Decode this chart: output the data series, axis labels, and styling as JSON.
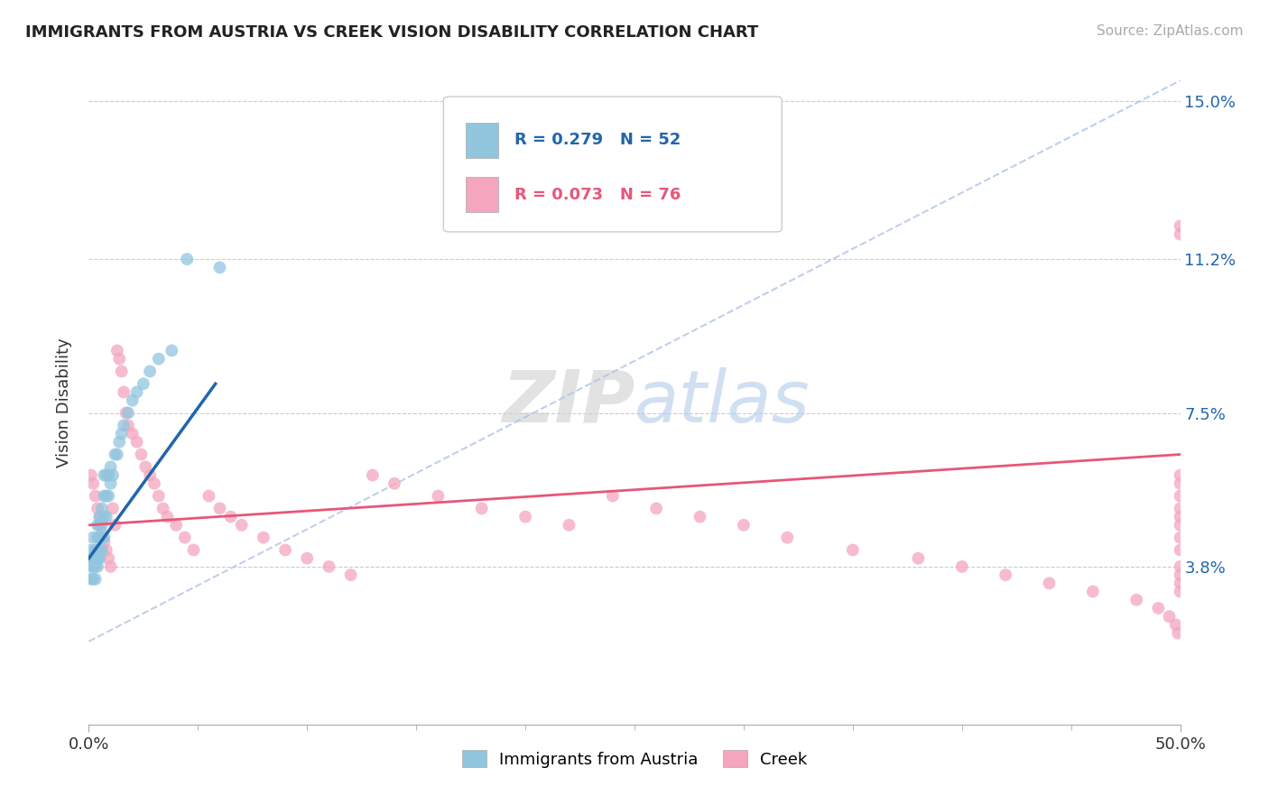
{
  "title": "IMMIGRANTS FROM AUSTRIA VS CREEK VISION DISABILITY CORRELATION CHART",
  "source_text": "Source: ZipAtlas.com",
  "ylabel": "Vision Disability",
  "legend_labels": [
    "Immigrants from Austria",
    "Creek"
  ],
  "austria_R": 0.279,
  "austria_N": 52,
  "creek_R": 0.073,
  "creek_N": 76,
  "xlim": [
    0.0,
    0.5
  ],
  "ylim": [
    0.0,
    0.155
  ],
  "ytick_vals": [
    0.038,
    0.075,
    0.112,
    0.15
  ],
  "ytick_labels": [
    "3.8%",
    "7.5%",
    "11.2%",
    "15.0%"
  ],
  "austria_color": "#92c5de",
  "creek_color": "#f4a6be",
  "austria_line_color": "#2166ac",
  "creek_line_color": "#e8567a",
  "diag_line_color": "#aec4e8",
  "background_color": "#ffffff",
  "austria_scatter_x": [
    0.001,
    0.001,
    0.001,
    0.001,
    0.002,
    0.002,
    0.002,
    0.002,
    0.003,
    0.003,
    0.003,
    0.003,
    0.004,
    0.004,
    0.004,
    0.004,
    0.004,
    0.005,
    0.005,
    0.005,
    0.005,
    0.005,
    0.006,
    0.006,
    0.006,
    0.006,
    0.007,
    0.007,
    0.007,
    0.007,
    0.008,
    0.008,
    0.008,
    0.009,
    0.009,
    0.01,
    0.01,
    0.011,
    0.012,
    0.013,
    0.014,
    0.015,
    0.016,
    0.018,
    0.02,
    0.022,
    0.025,
    0.028,
    0.032,
    0.038,
    0.045,
    0.06
  ],
  "austria_scatter_y": [
    0.035,
    0.038,
    0.04,
    0.042,
    0.035,
    0.038,
    0.04,
    0.045,
    0.035,
    0.038,
    0.04,
    0.042,
    0.038,
    0.04,
    0.042,
    0.045,
    0.048,
    0.04,
    0.042,
    0.045,
    0.048,
    0.05,
    0.042,
    0.045,
    0.048,
    0.052,
    0.045,
    0.05,
    0.055,
    0.06,
    0.05,
    0.055,
    0.06,
    0.055,
    0.06,
    0.058,
    0.062,
    0.06,
    0.065,
    0.065,
    0.068,
    0.07,
    0.072,
    0.075,
    0.078,
    0.08,
    0.082,
    0.085,
    0.088,
    0.09,
    0.112,
    0.11
  ],
  "creek_scatter_x": [
    0.001,
    0.002,
    0.003,
    0.004,
    0.005,
    0.005,
    0.006,
    0.007,
    0.008,
    0.009,
    0.01,
    0.011,
    0.012,
    0.013,
    0.014,
    0.015,
    0.016,
    0.017,
    0.018,
    0.02,
    0.022,
    0.024,
    0.026,
    0.028,
    0.03,
    0.032,
    0.034,
    0.036,
    0.04,
    0.044,
    0.048,
    0.055,
    0.06,
    0.065,
    0.07,
    0.08,
    0.09,
    0.1,
    0.11,
    0.12,
    0.13,
    0.14,
    0.16,
    0.18,
    0.2,
    0.22,
    0.24,
    0.26,
    0.28,
    0.3,
    0.32,
    0.35,
    0.38,
    0.4,
    0.42,
    0.44,
    0.46,
    0.48,
    0.49,
    0.495,
    0.498,
    0.499,
    0.5,
    0.5,
    0.5,
    0.5,
    0.5,
    0.5,
    0.5,
    0.5,
    0.5,
    0.5,
    0.5,
    0.5,
    0.5,
    0.5
  ],
  "creek_scatter_y": [
    0.06,
    0.058,
    0.055,
    0.052,
    0.05,
    0.048,
    0.046,
    0.044,
    0.042,
    0.04,
    0.038,
    0.052,
    0.048,
    0.09,
    0.088,
    0.085,
    0.08,
    0.075,
    0.072,
    0.07,
    0.068,
    0.065,
    0.062,
    0.06,
    0.058,
    0.055,
    0.052,
    0.05,
    0.048,
    0.045,
    0.042,
    0.055,
    0.052,
    0.05,
    0.048,
    0.045,
    0.042,
    0.04,
    0.038,
    0.036,
    0.06,
    0.058,
    0.055,
    0.052,
    0.05,
    0.048,
    0.055,
    0.052,
    0.05,
    0.048,
    0.045,
    0.042,
    0.04,
    0.038,
    0.036,
    0.034,
    0.032,
    0.03,
    0.028,
    0.026,
    0.024,
    0.022,
    0.12,
    0.118,
    0.055,
    0.052,
    0.05,
    0.048,
    0.045,
    0.042,
    0.038,
    0.036,
    0.034,
    0.032,
    0.06,
    0.058
  ]
}
